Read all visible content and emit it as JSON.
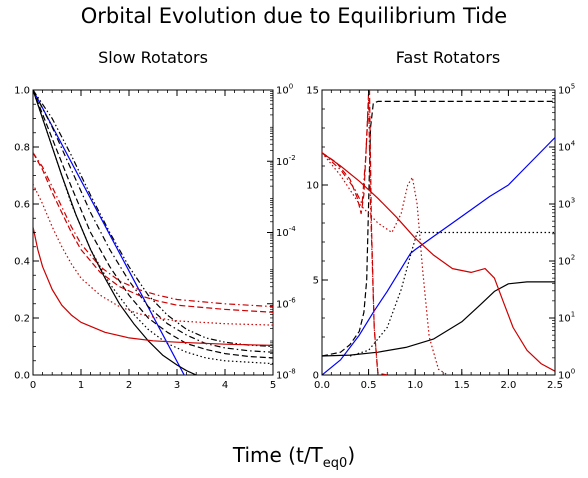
{
  "figure": {
    "title": "Orbital Evolution due to Equilibrium Tide",
    "xlabel_main": "Time (t/T",
    "xlabel_sub": "eq0",
    "xlabel_close": ")"
  },
  "chart_data": [
    {
      "type": "line",
      "title": "Slow Rotators",
      "xlim": [
        0,
        5
      ],
      "ylim_left": [
        0,
        1.0
      ],
      "ylim_right": [
        1e-08,
        1
      ],
      "right_axis_scale": "log",
      "x_ticks": [
        "0",
        "1",
        "2",
        "3",
        "4",
        "5"
      ],
      "y_ticks_left": [
        "0.0",
        "0.2",
        "0.4",
        "0.6",
        "0.8",
        "1.0"
      ],
      "y_ticks_right": [
        {
          "base": "10",
          "exp": "-8"
        },
        {
          "base": "10",
          "exp": "-6"
        },
        {
          "base": "10",
          "exp": "-4"
        },
        {
          "base": "10",
          "exp": "-2"
        },
        {
          "base": "10",
          "exp": "0"
        }
      ],
      "series": [
        {
          "color": "#0000ff",
          "dash": "solid",
          "axis": "left",
          "points": [
            [
              0,
              1.0
            ],
            [
              3.15,
              0.0
            ]
          ]
        },
        {
          "color": "#000000",
          "dash": "solid",
          "axis": "left",
          "points": [
            [
              0,
              1.0
            ],
            [
              0.3,
              0.85
            ],
            [
              0.6,
              0.7
            ],
            [
              0.9,
              0.56
            ],
            [
              1.2,
              0.44
            ],
            [
              1.5,
              0.34
            ],
            [
              1.8,
              0.25
            ],
            [
              2.1,
              0.18
            ],
            [
              2.4,
              0.12
            ],
            [
              2.7,
              0.07
            ],
            [
              3.0,
              0.035
            ],
            [
              3.2,
              0.015
            ],
            [
              3.4,
              0.0
            ]
          ]
        },
        {
          "color": "#000000",
          "dash": "dotted",
          "axis": "left",
          "points": [
            [
              0,
              1.0
            ],
            [
              0.4,
              0.8
            ],
            [
              0.8,
              0.6
            ],
            [
              1.2,
              0.44
            ],
            [
              1.6,
              0.32
            ],
            [
              2.0,
              0.23
            ],
            [
              2.4,
              0.16
            ],
            [
              2.8,
              0.11
            ],
            [
              3.2,
              0.08
            ],
            [
              3.6,
              0.06
            ],
            [
              4.0,
              0.05
            ],
            [
              4.5,
              0.045
            ],
            [
              5.0,
              0.04
            ]
          ]
        },
        {
          "color": "#000000",
          "dash": "dashed",
          "axis": "left",
          "points": [
            [
              0,
              1.0
            ],
            [
              0.4,
              0.83
            ],
            [
              0.8,
              0.66
            ],
            [
              1.2,
              0.5
            ],
            [
              1.6,
              0.38
            ],
            [
              2.0,
              0.28
            ],
            [
              2.4,
              0.2
            ],
            [
              2.8,
              0.15
            ],
            [
              3.2,
              0.11
            ],
            [
              3.6,
              0.09
            ],
            [
              4.0,
              0.075
            ],
            [
              4.5,
              0.065
            ],
            [
              5.0,
              0.06
            ]
          ]
        },
        {
          "color": "#000000",
          "dash": "dashdot",
          "axis": "left",
          "points": [
            [
              0,
              1.0
            ],
            [
              0.4,
              0.87
            ],
            [
              0.8,
              0.72
            ],
            [
              1.2,
              0.57
            ],
            [
              1.6,
              0.44
            ],
            [
              2.0,
              0.33
            ],
            [
              2.4,
              0.24
            ],
            [
              2.8,
              0.18
            ],
            [
              3.2,
              0.14
            ],
            [
              3.6,
              0.11
            ],
            [
              4.0,
              0.095
            ],
            [
              4.5,
              0.085
            ],
            [
              5.0,
              0.08
            ]
          ]
        },
        {
          "color": "#000000",
          "dash": "dashdotdot",
          "axis": "left",
          "points": [
            [
              0,
              1.0
            ],
            [
              0.4,
              0.9
            ],
            [
              0.8,
              0.77
            ],
            [
              1.2,
              0.63
            ],
            [
              1.6,
              0.5
            ],
            [
              2.0,
              0.38
            ],
            [
              2.4,
              0.28
            ],
            [
              2.8,
              0.21
            ],
            [
              3.2,
              0.16
            ],
            [
              3.6,
              0.13
            ],
            [
              4.0,
              0.115
            ],
            [
              4.5,
              0.105
            ],
            [
              5.0,
              0.1
            ]
          ]
        },
        {
          "color": "#cc0000",
          "dash": "solid",
          "axis": "left",
          "points": [
            [
              0,
              0.52
            ],
            [
              0.1,
              0.44
            ],
            [
              0.2,
              0.38
            ],
            [
              0.4,
              0.3
            ],
            [
              0.6,
              0.245
            ],
            [
              0.8,
              0.21
            ],
            [
              1.0,
              0.185
            ],
            [
              1.5,
              0.15
            ],
            [
              2.0,
              0.13
            ],
            [
              2.5,
              0.12
            ],
            [
              3.0,
              0.115
            ],
            [
              4.0,
              0.108
            ],
            [
              5.0,
              0.104
            ]
          ]
        },
        {
          "color": "#cc0000",
          "dash": "dotted",
          "axis": "left",
          "points": [
            [
              0,
              0.67
            ],
            [
              0.2,
              0.6
            ],
            [
              0.4,
              0.52
            ],
            [
              0.6,
              0.45
            ],
            [
              0.8,
              0.39
            ],
            [
              1.0,
              0.34
            ],
            [
              1.4,
              0.28
            ],
            [
              1.8,
              0.24
            ],
            [
              2.2,
              0.215
            ],
            [
              2.6,
              0.2
            ],
            [
              3.0,
              0.19
            ],
            [
              4.0,
              0.18
            ],
            [
              5.0,
              0.175
            ]
          ]
        },
        {
          "color": "#cc0000",
          "dash": "dashed",
          "axis": "left",
          "points": [
            [
              0,
              0.78
            ],
            [
              0.2,
              0.72
            ],
            [
              0.4,
              0.64
            ],
            [
              0.6,
              0.57
            ],
            [
              0.8,
              0.5
            ],
            [
              1.0,
              0.44
            ],
            [
              1.4,
              0.36
            ],
            [
              1.8,
              0.31
            ],
            [
              2.2,
              0.28
            ],
            [
              2.6,
              0.26
            ],
            [
              3.0,
              0.245
            ],
            [
              4.0,
              0.23
            ],
            [
              5.0,
              0.22
            ]
          ]
        },
        {
          "color": "#cc0000",
          "dash": "dashdot",
          "axis": "left",
          "points": [
            [
              0,
              0.78
            ],
            [
              0.2,
              0.73
            ],
            [
              0.4,
              0.66
            ],
            [
              0.6,
              0.59
            ],
            [
              0.8,
              0.52
            ],
            [
              1.0,
              0.46
            ],
            [
              1.4,
              0.38
            ],
            [
              1.8,
              0.33
            ],
            [
              2.2,
              0.3
            ],
            [
              2.6,
              0.28
            ],
            [
              3.0,
              0.265
            ],
            [
              4.0,
              0.25
            ],
            [
              5.0,
              0.24
            ]
          ]
        }
      ]
    },
    {
      "type": "line",
      "title": "Fast Rotators",
      "xlim": [
        0,
        2.5
      ],
      "ylim_left": [
        0,
        15
      ],
      "ylim_right": [
        1,
        100000
      ],
      "right_axis_scale": "log",
      "x_ticks": [
        "0.0",
        "0.5",
        "1.0",
        "1.5",
        "2.0",
        "2.5"
      ],
      "y_ticks_left": [
        "0",
        "5",
        "10",
        "15"
      ],
      "y_ticks_right": [
        {
          "base": "10",
          "exp": "0"
        },
        {
          "base": "10",
          "exp": "1"
        },
        {
          "base": "10",
          "exp": "2"
        },
        {
          "base": "10",
          "exp": "3"
        },
        {
          "base": "10",
          "exp": "4"
        },
        {
          "base": "10",
          "exp": "5"
        }
      ],
      "series": [
        {
          "color": "#0000ff",
          "dash": "solid",
          "axis": "left",
          "points": [
            [
              0,
              0
            ],
            [
              0.2,
              0.8
            ],
            [
              0.4,
              2.1
            ],
            [
              0.55,
              3.3
            ],
            [
              0.7,
              4.4
            ],
            [
              0.85,
              5.6
            ],
            [
              0.95,
              6.4
            ],
            [
              1.0,
              6.6
            ],
            [
              1.2,
              7.3
            ],
            [
              1.4,
              8.0
            ],
            [
              1.6,
              8.7
            ],
            [
              1.8,
              9.4
            ],
            [
              2.0,
              10.0
            ],
            [
              2.2,
              11.0
            ],
            [
              2.4,
              12.0
            ],
            [
              2.5,
              12.5
            ]
          ]
        },
        {
          "color": "#000000",
          "dash": "solid",
          "axis": "left",
          "points": [
            [
              0,
              1.0
            ],
            [
              0.3,
              1.05
            ],
            [
              0.6,
              1.2
            ],
            [
              0.9,
              1.45
            ],
            [
              1.2,
              1.9
            ],
            [
              1.5,
              2.8
            ],
            [
              1.7,
              3.7
            ],
            [
              1.85,
              4.4
            ],
            [
              2.0,
              4.8
            ],
            [
              2.2,
              4.9
            ],
            [
              2.5,
              4.9
            ]
          ]
        },
        {
          "color": "#000000",
          "dash": "dashed",
          "axis": "left",
          "points": [
            [
              0,
              1.0
            ],
            [
              0.2,
              1.2
            ],
            [
              0.3,
              1.6
            ],
            [
              0.4,
              2.3
            ],
            [
              0.45,
              3.3
            ],
            [
              0.48,
              5.0
            ],
            [
              0.5,
              9.0
            ],
            [
              0.52,
              13.0
            ],
            [
              0.55,
              14.3
            ],
            [
              0.6,
              14.4
            ],
            [
              1.5,
              14.4
            ],
            [
              2.5,
              14.4
            ]
          ]
        },
        {
          "color": "#000000",
          "dash": "dotted",
          "axis": "left",
          "points": [
            [
              0.3,
              1.0
            ],
            [
              0.5,
              1.3
            ],
            [
              0.7,
              2.5
            ],
            [
              0.85,
              4.5
            ],
            [
              0.95,
              6.3
            ],
            [
              1.02,
              7.5
            ],
            [
              1.2,
              7.5
            ],
            [
              1.6,
              7.5
            ],
            [
              2.0,
              7.5
            ],
            [
              2.5,
              7.5
            ]
          ]
        },
        {
          "color": "#cc0000",
          "dash": "solid",
          "axis": "left",
          "points": [
            [
              0,
              11.7
            ],
            [
              0.2,
              11.0
            ],
            [
              0.4,
              10.2
            ],
            [
              0.6,
              9.3
            ],
            [
              0.8,
              8.3
            ],
            [
              1.0,
              7.2
            ],
            [
              1.2,
              6.3
            ],
            [
              1.4,
              5.6
            ],
            [
              1.6,
              5.4
            ],
            [
              1.75,
              5.6
            ],
            [
              1.85,
              5.1
            ],
            [
              1.95,
              3.8
            ],
            [
              2.05,
              2.5
            ],
            [
              2.2,
              1.3
            ],
            [
              2.35,
              0.6
            ],
            [
              2.5,
              0.2
            ]
          ]
        },
        {
          "color": "#cc0000",
          "dash": "dashed",
          "axis": "left",
          "points": [
            [
              0,
              11.7
            ],
            [
              0.15,
              11.2
            ],
            [
              0.3,
              10.3
            ],
            [
              0.38,
              9.3
            ],
            [
              0.42,
              8.5
            ],
            [
              0.45,
              9.5
            ],
            [
              0.48,
              12.5
            ],
            [
              0.5,
              14.9
            ],
            [
              0.51,
              15.0
            ],
            [
              0.53,
              8.0
            ],
            [
              0.56,
              2.5
            ],
            [
              0.6,
              0.1
            ],
            [
              0.7,
              0.0
            ]
          ]
        },
        {
          "color": "#cc0000",
          "dash": "dotted",
          "axis": "left",
          "points": [
            [
              0,
              11.7
            ],
            [
              0.2,
              10.5
            ],
            [
              0.4,
              9.0
            ],
            [
              0.6,
              8.0
            ],
            [
              0.75,
              7.5
            ],
            [
              0.85,
              8.5
            ],
            [
              0.92,
              10.0
            ],
            [
              0.97,
              10.4
            ],
            [
              1.02,
              9.0
            ],
            [
              1.08,
              5.5
            ],
            [
              1.15,
              2.0
            ],
            [
              1.25,
              0.3
            ],
            [
              1.35,
              0.0
            ]
          ]
        },
        {
          "color": "#cc0000",
          "dash": "dashdot",
          "axis": "left",
          "points": [
            [
              0,
              11.7
            ],
            [
              0.2,
              10.8
            ],
            [
              0.35,
              9.8
            ],
            [
              0.43,
              9.0
            ],
            [
              0.47,
              11.5
            ],
            [
              0.5,
              14.5
            ],
            [
              0.52,
              9.0
            ],
            [
              0.56,
              2.5
            ],
            [
              0.6,
              0.0
            ]
          ]
        }
      ]
    }
  ]
}
